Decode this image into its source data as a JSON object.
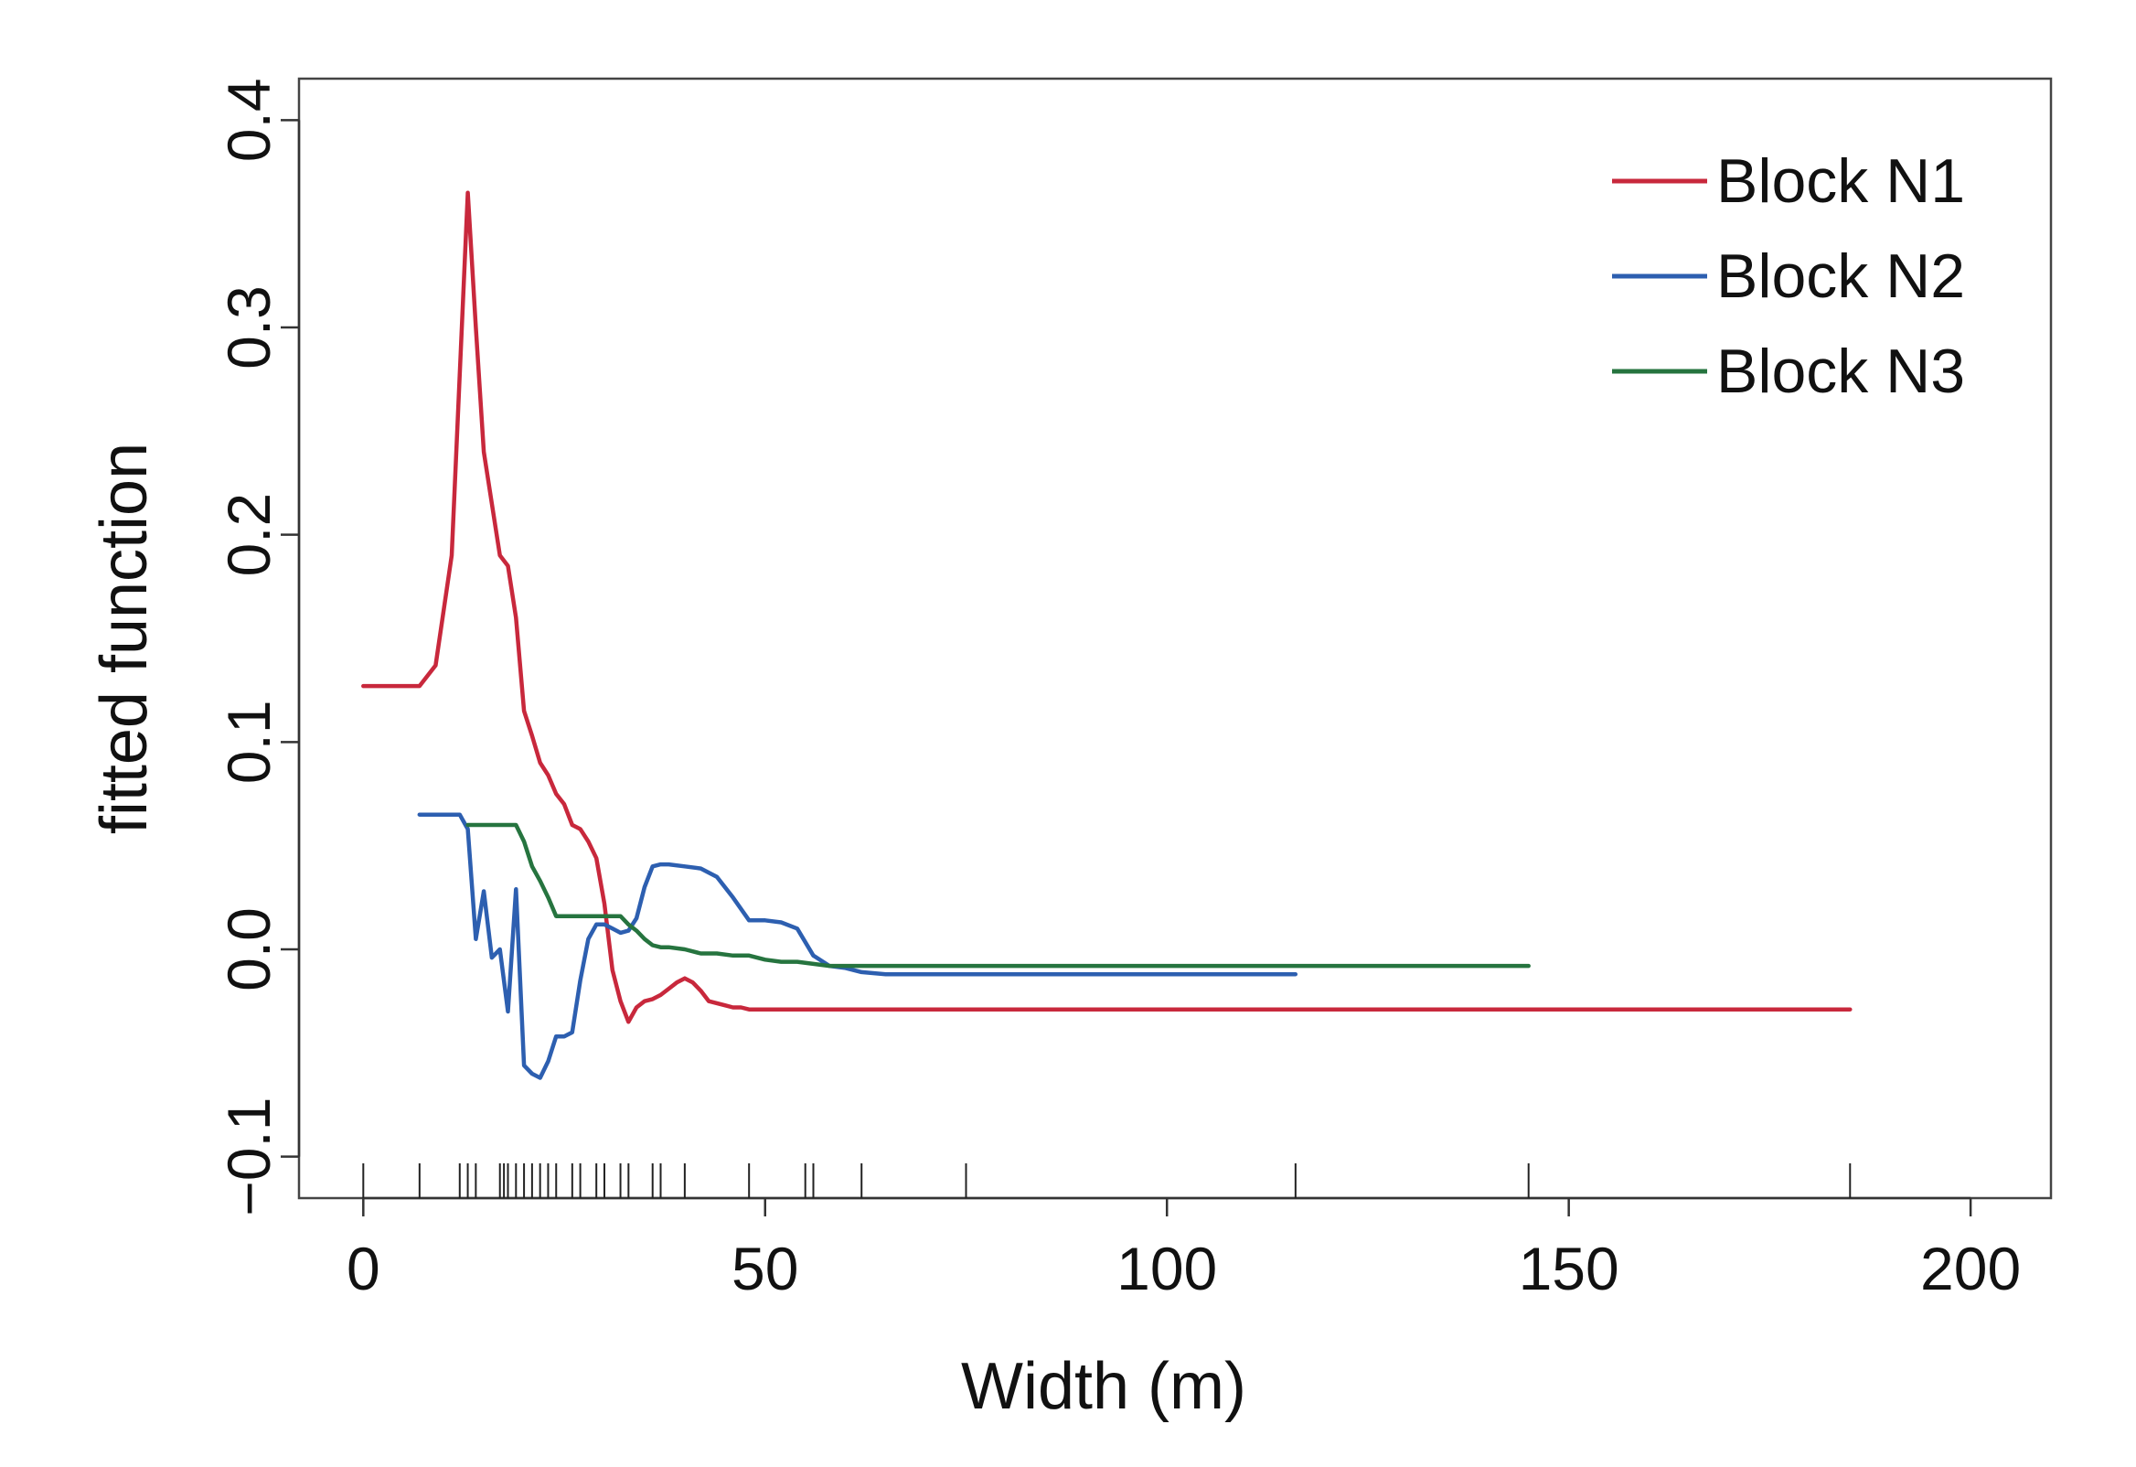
{
  "chart_data": {
    "type": "line",
    "title": "",
    "xlabel": "Width (m)",
    "ylabel": "fitted function",
    "xlim": [
      -8,
      210
    ],
    "ylim": [
      -0.12,
      0.42
    ],
    "xticks": [
      0,
      50,
      100,
      150,
      200
    ],
    "yticks": [
      -0.1,
      0.0,
      0.1,
      0.2,
      0.3,
      0.4
    ],
    "xtick_labels": [
      "0",
      "50",
      "100",
      "150",
      "200"
    ],
    "ytick_labels": [
      "−0.1",
      "0.0",
      "0.1",
      "0.2",
      "0.3",
      "0.4"
    ],
    "legend": {
      "position": "top-right"
    },
    "rug": [
      0,
      7,
      12,
      13,
      14,
      17,
      17.5,
      18,
      19,
      20,
      21,
      22,
      23,
      24,
      26,
      27,
      29,
      30,
      32,
      33,
      36,
      37,
      40,
      48,
      55,
      56,
      62,
      75,
      116,
      145,
      185
    ],
    "series": [
      {
        "name": "Block N1",
        "color": "#c8283c",
        "x": [
          0,
          7,
          9,
          11,
          13,
          14,
          15,
          16,
          17,
          18,
          19,
          20,
          21,
          22,
          23,
          24,
          25,
          26,
          27,
          28,
          29,
          30,
          31,
          32,
          33,
          34,
          35,
          36,
          37,
          38,
          39,
          40,
          41,
          42,
          43,
          44,
          45,
          46,
          47,
          48,
          50,
          52,
          185
        ],
        "y": [
          0.127,
          0.127,
          0.137,
          0.19,
          0.365,
          0.3,
          0.24,
          0.215,
          0.19,
          0.185,
          0.16,
          0.115,
          0.103,
          0.09,
          0.084,
          0.075,
          0.07,
          0.06,
          0.058,
          0.052,
          0.044,
          0.022,
          -0.01,
          -0.025,
          -0.035,
          -0.028,
          -0.025,
          -0.024,
          -0.022,
          -0.019,
          -0.016,
          -0.014,
          -0.016,
          -0.02,
          -0.025,
          -0.026,
          -0.027,
          -0.028,
          -0.028,
          -0.029,
          -0.029,
          -0.029,
          -0.029
        ]
      },
      {
        "name": "Block N2",
        "color": "#2d5fb0",
        "x": [
          7,
          12,
          13,
          14,
          15,
          16,
          17,
          18,
          19,
          20,
          21,
          22,
          23,
          24,
          25,
          26,
          27,
          28,
          29,
          30,
          31,
          32,
          33,
          34,
          35,
          36,
          37,
          38,
          40,
          42,
          44,
          46,
          48,
          50,
          52,
          54,
          56,
          58,
          60,
          62,
          65,
          116
        ],
        "y": [
          0.065,
          0.065,
          0.058,
          0.005,
          0.028,
          -0.004,
          0.0,
          -0.03,
          0.029,
          -0.056,
          -0.06,
          -0.062,
          -0.054,
          -0.042,
          -0.042,
          -0.04,
          -0.015,
          0.005,
          0.012,
          0.012,
          0.01,
          0.008,
          0.009,
          0.015,
          0.03,
          0.04,
          0.041,
          0.041,
          0.04,
          0.039,
          0.035,
          0.025,
          0.014,
          0.014,
          0.013,
          0.01,
          -0.003,
          -0.008,
          -0.009,
          -0.011,
          -0.012,
          -0.012
        ]
      },
      {
        "name": "Block N3",
        "color": "#26743f",
        "x": [
          13,
          15,
          17,
          18,
          19,
          20,
          21,
          22,
          23,
          24,
          25,
          26,
          27,
          28,
          29,
          30,
          31,
          32,
          33,
          34,
          35,
          36,
          37,
          38,
          40,
          42,
          44,
          46,
          48,
          50,
          52,
          54,
          56,
          58,
          60,
          145
        ],
        "y": [
          0.06,
          0.06,
          0.06,
          0.06,
          0.06,
          0.052,
          0.04,
          0.033,
          0.025,
          0.016,
          0.016,
          0.016,
          0.016,
          0.016,
          0.016,
          0.016,
          0.016,
          0.016,
          0.012,
          0.009,
          0.005,
          0.002,
          0.001,
          0.001,
          0.0,
          -0.002,
          -0.002,
          -0.003,
          -0.003,
          -0.005,
          -0.006,
          -0.006,
          -0.007,
          -0.008,
          -0.008,
          -0.008
        ]
      }
    ]
  }
}
